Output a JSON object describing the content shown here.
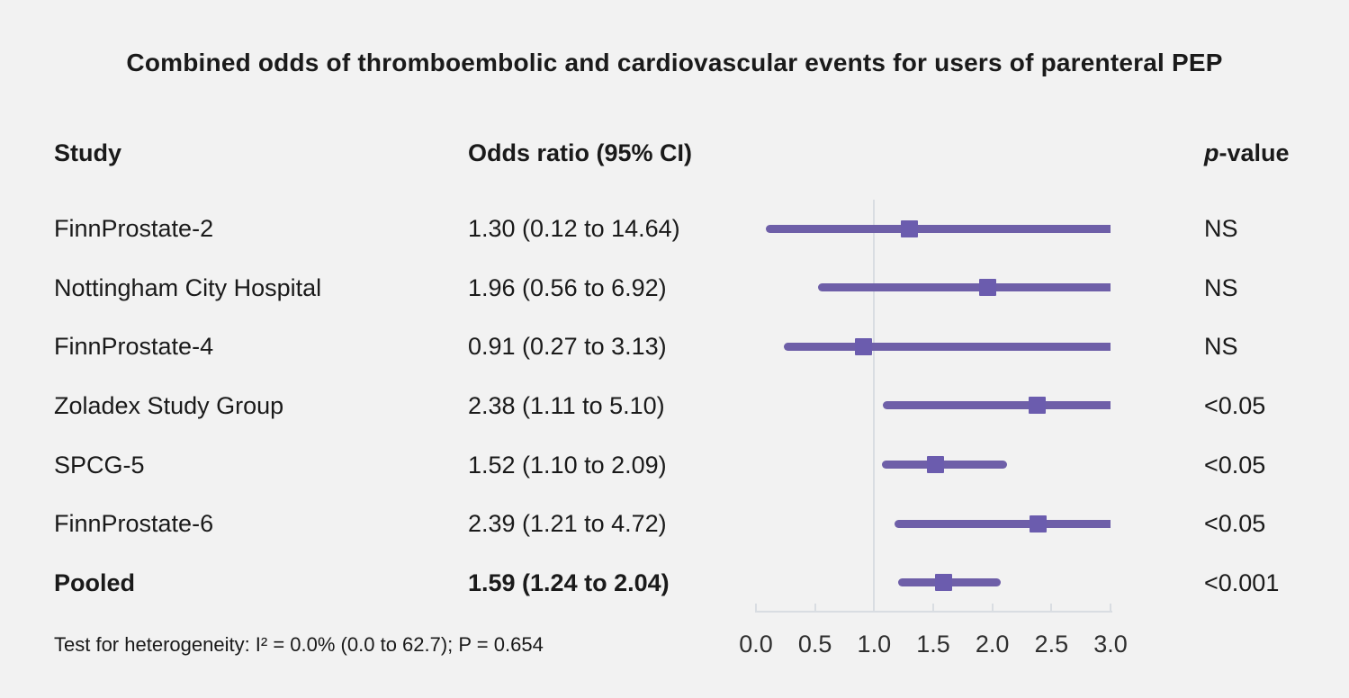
{
  "columns": {
    "study": "Study",
    "odds_ratio": "Odds ratio (95% CI)",
    "p_value_italic": "p",
    "p_value_rest": "-value"
  },
  "colors": {
    "background": "#f2f2f2",
    "bar": "#6e5fa8",
    "marker": "#6b5cae",
    "axis": "#d9dde2",
    "text": "#1a1a1a"
  },
  "chart_data": {
    "type": "forest",
    "title": "Combined odds of thromboembolic and cardiovascular events for users of parenteral PEP",
    "xlabel": "",
    "xlim": [
      0,
      3
    ],
    "xticks": [
      0,
      0.5,
      1,
      1.5,
      2,
      2.5,
      3
    ],
    "reference_line": 1.0,
    "rows": [
      {
        "study": "FinnProstate-2",
        "or": 1.3,
        "ci_low": 0.12,
        "ci_high": 14.64,
        "label": "1.30 (0.12 to 14.64)",
        "p": "NS",
        "bold": false
      },
      {
        "study": "Nottingham City Hospital",
        "or": 1.96,
        "ci_low": 0.56,
        "ci_high": 6.92,
        "label": "1.96 (0.56 to 6.92)",
        "p": "NS",
        "bold": false
      },
      {
        "study": "FinnProstate-4",
        "or": 0.91,
        "ci_low": 0.27,
        "ci_high": 3.13,
        "label": "0.91 (0.27 to 3.13)",
        "p": "NS",
        "bold": false
      },
      {
        "study": "Zoladex Study Group",
        "or": 2.38,
        "ci_low": 1.11,
        "ci_high": 5.1,
        "label": "2.38 (1.11 to 5.10)",
        "p": "<0.05",
        "bold": false
      },
      {
        "study": "SPCG-5",
        "or": 1.52,
        "ci_low": 1.1,
        "ci_high": 2.09,
        "label": "1.52 (1.10 to 2.09)",
        "p": "<0.05",
        "bold": false
      },
      {
        "study": "FinnProstate-6",
        "or": 2.39,
        "ci_low": 1.21,
        "ci_high": 4.72,
        "label": "2.39 (1.21 to 4.72)",
        "p": "<0.05",
        "bold": false
      },
      {
        "study": "Pooled",
        "or": 1.59,
        "ci_low": 1.24,
        "ci_high": 2.04,
        "label": "1.59 (1.24 to 2.04)",
        "p": "<0.001",
        "bold": true
      }
    ],
    "heterogeneity": "Test for heterogeneity: I² = 0.0% (0.0 to 62.7); P = 0.654"
  }
}
